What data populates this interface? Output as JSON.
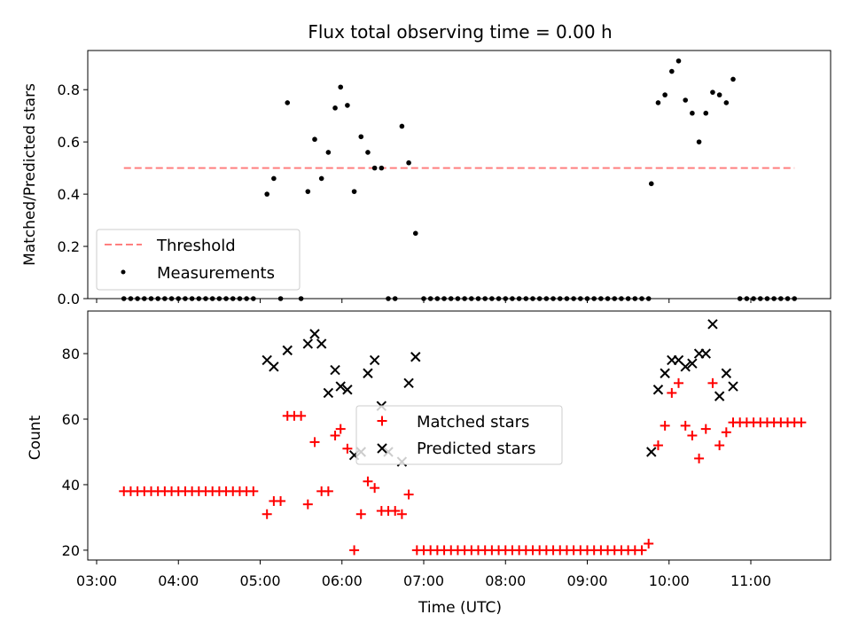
{
  "chart_data": [
    {
      "type": "scatter",
      "title": "Flux total observing time = 0.00 h",
      "xlabel": "",
      "ylabel": "Matched/Predicted stars",
      "xlim": [
        "03:00",
        "12:00"
      ],
      "ylim": [
        0,
        0.95
      ],
      "xticks": [
        "03:00",
        "04:00",
        "05:00",
        "06:00",
        "07:00",
        "08:00",
        "09:00",
        "10:00",
        "11:00"
      ],
      "yticks": [
        "0.0",
        "0.2",
        "0.4",
        "0.6",
        "0.8"
      ],
      "legend_position": "lower-left",
      "threshold": {
        "name": "Threshold",
        "value": 0.5,
        "x_range": [
          "03:20",
          "11:32"
        ],
        "color": "#ff7f7f",
        "style": "dashed"
      },
      "series": [
        {
          "name": "Measurements",
          "marker": "dot",
          "color": "#000000",
          "points": [
            [
              "03:20",
              0
            ],
            [
              "03:25",
              0
            ],
            [
              "03:30",
              0
            ],
            [
              "03:35",
              0
            ],
            [
              "03:40",
              0
            ],
            [
              "03:45",
              0
            ],
            [
              "03:50",
              0
            ],
            [
              "03:55",
              0
            ],
            [
              "04:00",
              0
            ],
            [
              "04:05",
              0
            ],
            [
              "04:10",
              0
            ],
            [
              "04:15",
              0
            ],
            [
              "04:20",
              0
            ],
            [
              "04:25",
              0
            ],
            [
              "04:30",
              0
            ],
            [
              "04:35",
              0
            ],
            [
              "04:40",
              0
            ],
            [
              "04:45",
              0
            ],
            [
              "04:50",
              0
            ],
            [
              "04:55",
              0
            ],
            [
              "05:05",
              0.4
            ],
            [
              "05:10",
              0.46
            ],
            [
              "05:15",
              0
            ],
            [
              "05:20",
              0.75
            ],
            [
              "05:30",
              0
            ],
            [
              "05:35",
              0.41
            ],
            [
              "05:40",
              0.61
            ],
            [
              "05:45",
              0.46
            ],
            [
              "05:50",
              0.56
            ],
            [
              "05:55",
              0.73
            ],
            [
              "05:59",
              0.81
            ],
            [
              "06:04",
              0.74
            ],
            [
              "06:09",
              0.41
            ],
            [
              "06:14",
              0.62
            ],
            [
              "06:19",
              0.56
            ],
            [
              "06:24",
              0.5
            ],
            [
              "06:29",
              0.5
            ],
            [
              "06:34",
              0
            ],
            [
              "06:39",
              0
            ],
            [
              "06:44",
              0.66
            ],
            [
              "06:49",
              0.52
            ],
            [
              "06:54",
              0.25
            ],
            [
              "07:00",
              0
            ],
            [
              "07:05",
              0
            ],
            [
              "07:10",
              0
            ],
            [
              "07:15",
              0
            ],
            [
              "07:20",
              0
            ],
            [
              "07:25",
              0
            ],
            [
              "07:30",
              0
            ],
            [
              "07:35",
              0
            ],
            [
              "07:40",
              0
            ],
            [
              "07:45",
              0
            ],
            [
              "07:50",
              0
            ],
            [
              "07:55",
              0
            ],
            [
              "08:00",
              0
            ],
            [
              "08:05",
              0
            ],
            [
              "08:10",
              0
            ],
            [
              "08:15",
              0
            ],
            [
              "08:20",
              0
            ],
            [
              "08:25",
              0
            ],
            [
              "08:30",
              0
            ],
            [
              "08:35",
              0
            ],
            [
              "08:40",
              0
            ],
            [
              "08:45",
              0
            ],
            [
              "08:50",
              0
            ],
            [
              "08:55",
              0
            ],
            [
              "09:00",
              0
            ],
            [
              "09:05",
              0
            ],
            [
              "09:10",
              0
            ],
            [
              "09:15",
              0
            ],
            [
              "09:20",
              0
            ],
            [
              "09:25",
              0
            ],
            [
              "09:30",
              0
            ],
            [
              "09:35",
              0
            ],
            [
              "09:40",
              0
            ],
            [
              "09:45",
              0
            ],
            [
              "09:47",
              0.44
            ],
            [
              "09:52",
              0.75
            ],
            [
              "09:57",
              0.78
            ],
            [
              "10:02",
              0.87
            ],
            [
              "10:07",
              0.91
            ],
            [
              "10:12",
              0.76
            ],
            [
              "10:17",
              0.71
            ],
            [
              "10:22",
              0.6
            ],
            [
              "10:27",
              0.71
            ],
            [
              "10:32",
              0.79
            ],
            [
              "10:37",
              0.78
            ],
            [
              "10:42",
              0.75
            ],
            [
              "10:47",
              0.84
            ],
            [
              "10:52",
              0
            ],
            [
              "10:57",
              0
            ],
            [
              "11:02",
              0
            ],
            [
              "11:07",
              0
            ],
            [
              "11:12",
              0
            ],
            [
              "11:17",
              0
            ],
            [
              "11:22",
              0
            ],
            [
              "11:27",
              0
            ],
            [
              "11:32",
              0
            ]
          ]
        }
      ]
    },
    {
      "type": "scatter",
      "title": "",
      "xlabel": "Time (UTC)",
      "ylabel": "Count",
      "xlim": [
        "03:00",
        "12:00"
      ],
      "ylim": [
        17,
        93
      ],
      "xticks": [
        "03:00",
        "04:00",
        "05:00",
        "06:00",
        "07:00",
        "08:00",
        "09:00",
        "10:00",
        "11:00"
      ],
      "yticks": [
        "20",
        "40",
        "60",
        "80"
      ],
      "legend_position": "center",
      "series": [
        {
          "name": "Matched stars",
          "marker": "plus",
          "color": "#ff0000",
          "points": [
            [
              "03:20",
              38
            ],
            [
              "03:25",
              38
            ],
            [
              "03:30",
              38
            ],
            [
              "03:35",
              38
            ],
            [
              "03:40",
              38
            ],
            [
              "03:45",
              38
            ],
            [
              "03:50",
              38
            ],
            [
              "03:55",
              38
            ],
            [
              "04:00",
              38
            ],
            [
              "04:05",
              38
            ],
            [
              "04:10",
              38
            ],
            [
              "04:15",
              38
            ],
            [
              "04:20",
              38
            ],
            [
              "04:25",
              38
            ],
            [
              "04:30",
              38
            ],
            [
              "04:35",
              38
            ],
            [
              "04:40",
              38
            ],
            [
              "04:45",
              38
            ],
            [
              "04:50",
              38
            ],
            [
              "04:55",
              38
            ],
            [
              "05:05",
              31
            ],
            [
              "05:10",
              35
            ],
            [
              "05:15",
              35
            ],
            [
              "05:20",
              61
            ],
            [
              "05:25",
              61
            ],
            [
              "05:30",
              61
            ],
            [
              "05:35",
              34
            ],
            [
              "05:40",
              53
            ],
            [
              "05:45",
              38
            ],
            [
              "05:50",
              38
            ],
            [
              "05:55",
              55
            ],
            [
              "05:59",
              57
            ],
            [
              "06:04",
              51
            ],
            [
              "06:09",
              20
            ],
            [
              "06:14",
              31
            ],
            [
              "06:19",
              41
            ],
            [
              "06:24",
              39
            ],
            [
              "06:29",
              32
            ],
            [
              "06:34",
              32
            ],
            [
              "06:39",
              32
            ],
            [
              "06:44",
              31
            ],
            [
              "06:49",
              37
            ],
            [
              "06:55",
              20
            ],
            [
              "07:00",
              20
            ],
            [
              "07:05",
              20
            ],
            [
              "07:10",
              20
            ],
            [
              "07:15",
              20
            ],
            [
              "07:20",
              20
            ],
            [
              "07:25",
              20
            ],
            [
              "07:30",
              20
            ],
            [
              "07:35",
              20
            ],
            [
              "07:40",
              20
            ],
            [
              "07:45",
              20
            ],
            [
              "07:50",
              20
            ],
            [
              "07:55",
              20
            ],
            [
              "08:00",
              20
            ],
            [
              "08:05",
              20
            ],
            [
              "08:10",
              20
            ],
            [
              "08:15",
              20
            ],
            [
              "08:20",
              20
            ],
            [
              "08:25",
              20
            ],
            [
              "08:30",
              20
            ],
            [
              "08:35",
              20
            ],
            [
              "08:40",
              20
            ],
            [
              "08:45",
              20
            ],
            [
              "08:50",
              20
            ],
            [
              "08:55",
              20
            ],
            [
              "09:00",
              20
            ],
            [
              "09:05",
              20
            ],
            [
              "09:10",
              20
            ],
            [
              "09:15",
              20
            ],
            [
              "09:20",
              20
            ],
            [
              "09:25",
              20
            ],
            [
              "09:30",
              20
            ],
            [
              "09:35",
              20
            ],
            [
              "09:40",
              20
            ],
            [
              "09:45",
              22
            ],
            [
              "09:52",
              52
            ],
            [
              "09:57",
              58
            ],
            [
              "10:02",
              68
            ],
            [
              "10:07",
              71
            ],
            [
              "10:12",
              58
            ],
            [
              "10:17",
              55
            ],
            [
              "10:22",
              48
            ],
            [
              "10:27",
              57
            ],
            [
              "10:32",
              71
            ],
            [
              "10:37",
              52
            ],
            [
              "10:42",
              56
            ],
            [
              "10:47",
              59
            ],
            [
              "10:52",
              59
            ],
            [
              "10:57",
              59
            ],
            [
              "11:02",
              59
            ],
            [
              "11:07",
              59
            ],
            [
              "11:12",
              59
            ],
            [
              "11:17",
              59
            ],
            [
              "11:22",
              59
            ],
            [
              "11:27",
              59
            ],
            [
              "11:32",
              59
            ],
            [
              "11:37",
              59
            ]
          ]
        },
        {
          "name": "Predicted stars",
          "marker": "x",
          "color": "#000000",
          "points": [
            [
              "05:05",
              78
            ],
            [
              "05:10",
              76
            ],
            [
              "05:20",
              81
            ],
            [
              "05:35",
              83
            ],
            [
              "05:40",
              86
            ],
            [
              "05:45",
              83
            ],
            [
              "05:50",
              68
            ],
            [
              "05:55",
              75
            ],
            [
              "05:59",
              70
            ],
            [
              "06:04",
              69
            ],
            [
              "06:09",
              49
            ],
            [
              "06:14",
              50
            ],
            [
              "06:19",
              74
            ],
            [
              "06:24",
              78
            ],
            [
              "06:29",
              64
            ],
            [
              "06:34",
              50
            ],
            [
              "06:44",
              47
            ],
            [
              "06:49",
              71
            ],
            [
              "06:54",
              79
            ],
            [
              "09:47",
              50
            ],
            [
              "09:52",
              69
            ],
            [
              "09:57",
              74
            ],
            [
              "10:02",
              78
            ],
            [
              "10:07",
              78
            ],
            [
              "10:12",
              76
            ],
            [
              "10:17",
              77
            ],
            [
              "10:22",
              80
            ],
            [
              "10:27",
              80
            ],
            [
              "10:32",
              89
            ],
            [
              "10:37",
              67
            ],
            [
              "10:42",
              74
            ],
            [
              "10:47",
              70
            ]
          ]
        }
      ]
    }
  ]
}
